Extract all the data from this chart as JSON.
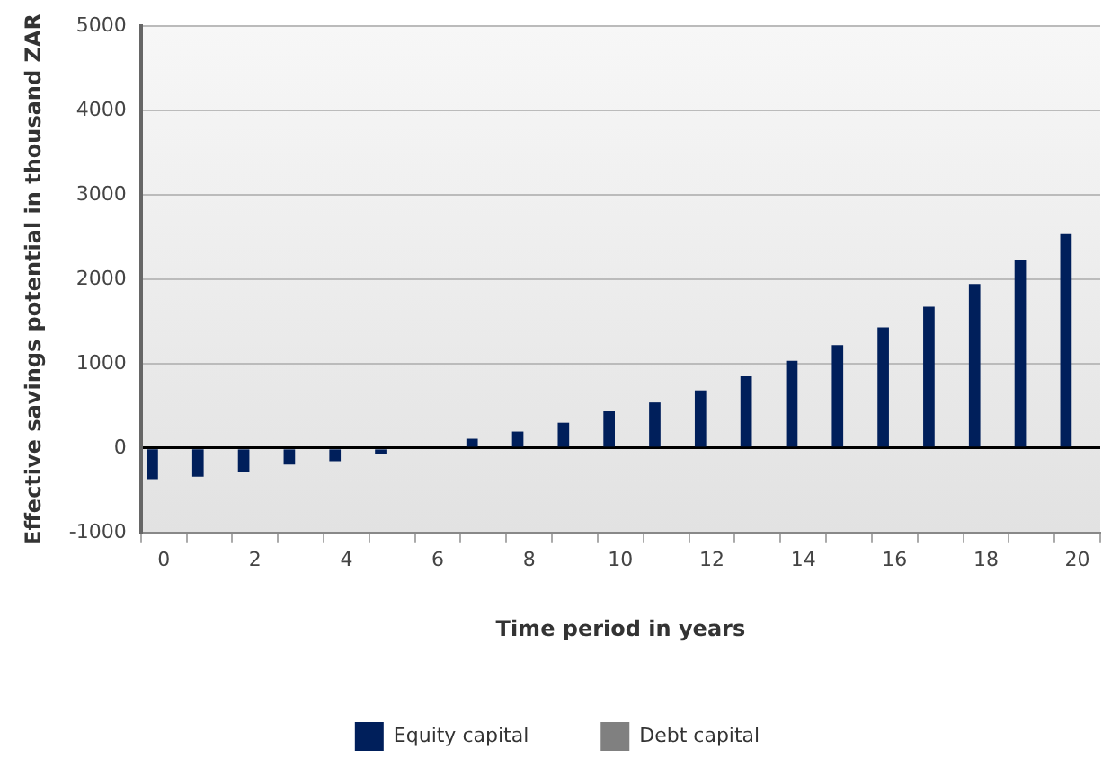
{
  "chart_data": {
    "type": "bar",
    "xlabel": "Time period in years",
    "ylabel": "Effective savings potential in thousand ZAR",
    "categories": [
      "0",
      null,
      "2",
      null,
      "4",
      null,
      "6",
      null,
      "8",
      null,
      "10",
      null,
      "12",
      null,
      "14",
      null,
      "16",
      null,
      "18",
      null,
      "20"
    ],
    "series": [
      {
        "name": "Equity capital",
        "color": "#001f5b",
        "values": [
          -370,
          -340,
          -280,
          -195,
          -155,
          -70,
          0,
          110,
          195,
          300,
          435,
          540,
          683,
          850,
          1035,
          1220,
          1430,
          1675,
          1945,
          2235,
          2545
        ]
      },
      {
        "name": "Debt capital",
        "color": "#808080",
        "values": [
          null,
          null,
          null,
          null,
          null,
          null,
          null,
          null,
          null,
          null,
          null,
          null,
          null,
          null,
          null,
          null,
          null,
          null,
          null,
          null,
          null
        ]
      }
    ],
    "ylim": [
      -1000,
      5000
    ],
    "yticks": [
      -1000,
      0,
      1000,
      2000,
      3000,
      4000,
      5000
    ],
    "grid": "y",
    "legend": "bottom"
  }
}
